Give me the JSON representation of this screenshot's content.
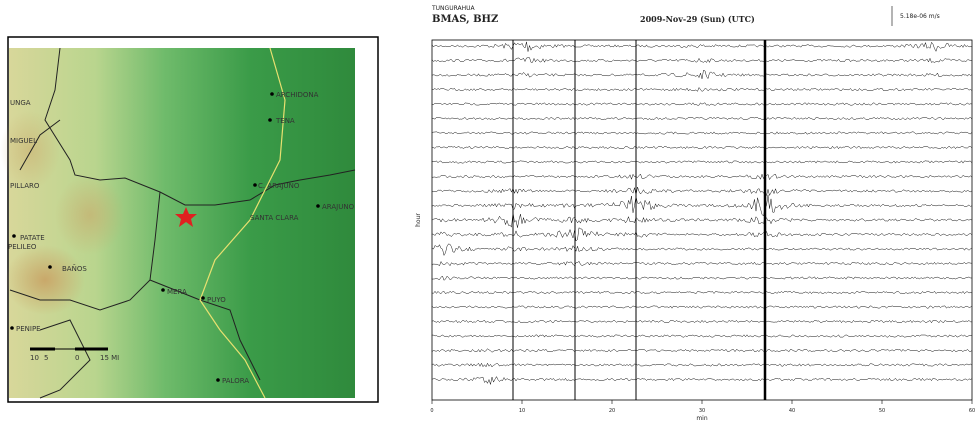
{
  "map": {
    "places": [
      "UNGA",
      "MIGUEL",
      "PILLARO",
      "PATATE",
      "PELILEO",
      "BAÑOS",
      "PENIPE",
      "ARCHIDONA",
      "TENA",
      "C. ARAJUNO",
      "ARAJUNO",
      "SANTA CLARA",
      "MERA",
      "PUYO",
      "PALORA"
    ],
    "scale": [
      "10",
      "5",
      "0",
      "15 MI"
    ]
  },
  "seismogram": {
    "volcano": "TUNGURAHUA",
    "station": "BMAS, BHZ",
    "date": "2009-Nov-29 (Sun)  (UTC)",
    "scale": "5.18e-06 m/s",
    "x_label": "min",
    "y_label": "hour",
    "x_ticks": [
      "0",
      "10",
      "20",
      "30",
      "40",
      "50",
      "60"
    ]
  }
}
